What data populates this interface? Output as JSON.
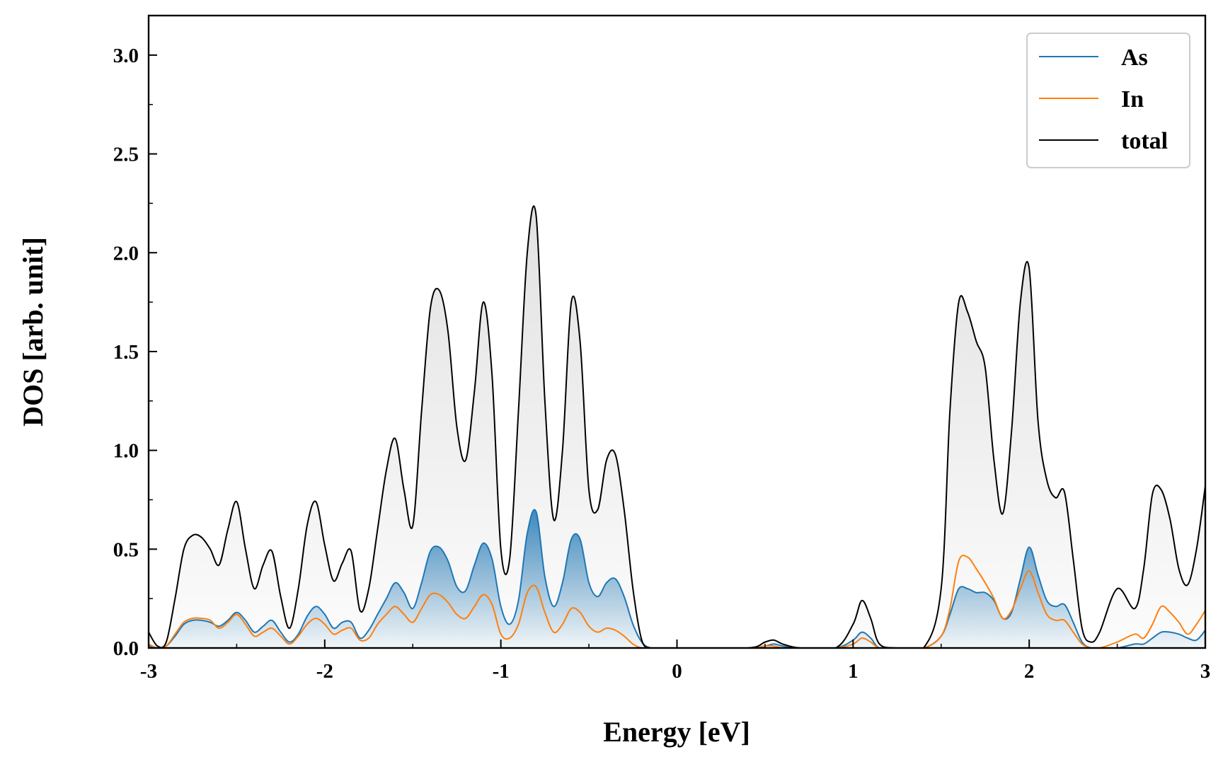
{
  "chart_data": {
    "type": "line",
    "title": "",
    "xlabel": "Energy [eV]",
    "ylabel": "DOS [arb. unit]",
    "xlim": [
      -3,
      3
    ],
    "ylim": [
      0,
      3.2
    ],
    "x_ticks": [
      -3,
      -2,
      -1,
      0,
      1,
      2,
      3
    ],
    "x_tick_labels": [
      "-3",
      "-2",
      "-1",
      "0",
      "1",
      "2",
      "3"
    ],
    "y_ticks": [
      0.0,
      0.5,
      1.0,
      1.5,
      2.0,
      2.5,
      3.0
    ],
    "y_tick_labels": [
      "0.0",
      "0.5",
      "1.0",
      "1.5",
      "2.0",
      "2.5",
      "3.0"
    ],
    "grid": false,
    "legend_position": "top-right",
    "series": [
      {
        "name": "As",
        "color": "#1f77b4",
        "x": [
          -3.0,
          -2.95,
          -2.9,
          -2.85,
          -2.8,
          -2.75,
          -2.7,
          -2.65,
          -2.6,
          -2.55,
          -2.5,
          -2.45,
          -2.4,
          -2.35,
          -2.3,
          -2.25,
          -2.2,
          -2.15,
          -2.1,
          -2.05,
          -2.0,
          -1.95,
          -1.9,
          -1.85,
          -1.8,
          -1.75,
          -1.7,
          -1.65,
          -1.6,
          -1.55,
          -1.5,
          -1.45,
          -1.4,
          -1.35,
          -1.3,
          -1.25,
          -1.2,
          -1.15,
          -1.1,
          -1.05,
          -1.0,
          -0.95,
          -0.9,
          -0.85,
          -0.8,
          -0.75,
          -0.7,
          -0.65,
          -0.6,
          -0.55,
          -0.5,
          -0.45,
          -0.4,
          -0.35,
          -0.3,
          -0.25,
          -0.2,
          -0.15,
          -0.1,
          0.0,
          0.4,
          0.5,
          0.55,
          0.6,
          0.7,
          0.9,
          1.0,
          1.05,
          1.1,
          1.15,
          1.25,
          1.4,
          1.5,
          1.55,
          1.6,
          1.65,
          1.7,
          1.75,
          1.8,
          1.85,
          1.9,
          1.95,
          2.0,
          2.05,
          2.1,
          2.15,
          2.2,
          2.25,
          2.3,
          2.35,
          2.4,
          2.5,
          2.6,
          2.65,
          2.7,
          2.75,
          2.8,
          2.85,
          2.9,
          2.95,
          3.0
        ],
        "y": [
          0.01,
          0.0,
          0.01,
          0.06,
          0.12,
          0.14,
          0.14,
          0.13,
          0.11,
          0.14,
          0.18,
          0.14,
          0.08,
          0.11,
          0.14,
          0.08,
          0.03,
          0.07,
          0.16,
          0.21,
          0.17,
          0.1,
          0.13,
          0.13,
          0.05,
          0.09,
          0.17,
          0.25,
          0.33,
          0.28,
          0.2,
          0.33,
          0.49,
          0.51,
          0.44,
          0.31,
          0.29,
          0.42,
          0.53,
          0.45,
          0.21,
          0.12,
          0.24,
          0.58,
          0.69,
          0.36,
          0.21,
          0.33,
          0.55,
          0.55,
          0.33,
          0.26,
          0.33,
          0.35,
          0.26,
          0.12,
          0.03,
          0.0,
          0.0,
          0.0,
          0.0,
          0.01,
          0.02,
          0.01,
          0.0,
          0.0,
          0.04,
          0.08,
          0.05,
          0.0,
          0.0,
          0.0,
          0.06,
          0.17,
          0.3,
          0.3,
          0.28,
          0.28,
          0.24,
          0.15,
          0.18,
          0.35,
          0.51,
          0.37,
          0.24,
          0.21,
          0.22,
          0.13,
          0.03,
          0.0,
          0.0,
          0.0,
          0.02,
          0.02,
          0.05,
          0.08,
          0.08,
          0.07,
          0.05,
          0.04,
          0.09
        ]
      },
      {
        "name": "In",
        "color": "#ff7f0e",
        "x": [
          -3.0,
          -2.95,
          -2.9,
          -2.85,
          -2.8,
          -2.75,
          -2.7,
          -2.65,
          -2.6,
          -2.55,
          -2.5,
          -2.45,
          -2.4,
          -2.35,
          -2.3,
          -2.25,
          -2.2,
          -2.15,
          -2.1,
          -2.05,
          -2.0,
          -1.95,
          -1.9,
          -1.85,
          -1.8,
          -1.75,
          -1.7,
          -1.65,
          -1.6,
          -1.55,
          -1.5,
          -1.45,
          -1.4,
          -1.35,
          -1.3,
          -1.25,
          -1.2,
          -1.15,
          -1.1,
          -1.05,
          -1.0,
          -0.95,
          -0.9,
          -0.85,
          -0.8,
          -0.75,
          -0.7,
          -0.65,
          -0.6,
          -0.55,
          -0.5,
          -0.45,
          -0.4,
          -0.35,
          -0.3,
          -0.25,
          -0.2,
          -0.15,
          -0.1,
          0.0,
          0.4,
          0.5,
          0.55,
          0.6,
          0.7,
          0.9,
          1.0,
          1.05,
          1.1,
          1.15,
          1.25,
          1.4,
          1.5,
          1.55,
          1.6,
          1.65,
          1.7,
          1.75,
          1.8,
          1.85,
          1.9,
          1.95,
          2.0,
          2.05,
          2.1,
          2.15,
          2.2,
          2.25,
          2.3,
          2.35,
          2.4,
          2.5,
          2.6,
          2.65,
          2.7,
          2.75,
          2.8,
          2.85,
          2.9,
          2.95,
          3.0
        ],
        "y": [
          0.02,
          0.0,
          0.01,
          0.07,
          0.13,
          0.15,
          0.15,
          0.14,
          0.1,
          0.13,
          0.17,
          0.12,
          0.06,
          0.08,
          0.1,
          0.06,
          0.02,
          0.06,
          0.12,
          0.15,
          0.12,
          0.07,
          0.09,
          0.1,
          0.04,
          0.05,
          0.12,
          0.17,
          0.21,
          0.17,
          0.13,
          0.2,
          0.27,
          0.27,
          0.23,
          0.17,
          0.15,
          0.21,
          0.27,
          0.22,
          0.07,
          0.05,
          0.12,
          0.28,
          0.31,
          0.18,
          0.08,
          0.12,
          0.2,
          0.18,
          0.11,
          0.08,
          0.1,
          0.09,
          0.06,
          0.02,
          0.0,
          0.0,
          0.0,
          0.0,
          0.0,
          0.01,
          0.01,
          0.0,
          0.0,
          0.0,
          0.02,
          0.05,
          0.03,
          0.0,
          0.0,
          0.0,
          0.06,
          0.2,
          0.44,
          0.46,
          0.4,
          0.33,
          0.25,
          0.15,
          0.19,
          0.3,
          0.39,
          0.28,
          0.17,
          0.14,
          0.14,
          0.08,
          0.02,
          0.0,
          0.0,
          0.03,
          0.07,
          0.05,
          0.12,
          0.21,
          0.18,
          0.13,
          0.07,
          0.12,
          0.19
        ]
      },
      {
        "name": "total",
        "color": "#000000",
        "x": [
          -3.0,
          -2.95,
          -2.9,
          -2.85,
          -2.8,
          -2.75,
          -2.7,
          -2.65,
          -2.6,
          -2.55,
          -2.5,
          -2.45,
          -2.4,
          -2.35,
          -2.3,
          -2.25,
          -2.2,
          -2.15,
          -2.1,
          -2.05,
          -2.0,
          -1.95,
          -1.9,
          -1.85,
          -1.8,
          -1.75,
          -1.7,
          -1.65,
          -1.6,
          -1.55,
          -1.5,
          -1.45,
          -1.4,
          -1.35,
          -1.3,
          -1.25,
          -1.2,
          -1.15,
          -1.1,
          -1.05,
          -1.0,
          -0.95,
          -0.9,
          -0.85,
          -0.8,
          -0.75,
          -0.7,
          -0.65,
          -0.6,
          -0.55,
          -0.5,
          -0.45,
          -0.4,
          -0.35,
          -0.3,
          -0.25,
          -0.2,
          -0.15,
          -0.1,
          0.0,
          0.4,
          0.5,
          0.55,
          0.6,
          0.7,
          0.9,
          1.0,
          1.05,
          1.1,
          1.15,
          1.25,
          1.4,
          1.5,
          1.55,
          1.6,
          1.65,
          1.7,
          1.75,
          1.8,
          1.85,
          1.9,
          1.95,
          2.0,
          2.05,
          2.1,
          2.15,
          2.2,
          2.25,
          2.3,
          2.35,
          2.4,
          2.5,
          2.6,
          2.65,
          2.7,
          2.75,
          2.8,
          2.85,
          2.9,
          2.95,
          3.0
        ],
        "y": [
          0.08,
          0.01,
          0.03,
          0.25,
          0.5,
          0.57,
          0.56,
          0.5,
          0.42,
          0.6,
          0.74,
          0.5,
          0.3,
          0.42,
          0.49,
          0.26,
          0.1,
          0.3,
          0.62,
          0.74,
          0.52,
          0.34,
          0.43,
          0.49,
          0.19,
          0.3,
          0.6,
          0.9,
          1.06,
          0.8,
          0.62,
          1.2,
          1.72,
          1.81,
          1.6,
          1.12,
          0.95,
          1.3,
          1.75,
          1.38,
          0.5,
          0.45,
          1.2,
          2.0,
          2.19,
          1.25,
          0.65,
          1.0,
          1.75,
          1.55,
          0.8,
          0.7,
          0.95,
          0.98,
          0.7,
          0.3,
          0.04,
          0.0,
          0.0,
          0.0,
          0.0,
          0.03,
          0.04,
          0.02,
          0.0,
          0.0,
          0.12,
          0.24,
          0.15,
          0.02,
          0.0,
          0.0,
          0.3,
          1.2,
          1.75,
          1.7,
          1.55,
          1.42,
          0.95,
          0.68,
          1.1,
          1.75,
          1.92,
          1.15,
          0.85,
          0.76,
          0.79,
          0.45,
          0.1,
          0.03,
          0.08,
          0.3,
          0.2,
          0.4,
          0.78,
          0.8,
          0.65,
          0.4,
          0.32,
          0.5,
          0.82
        ]
      }
    ]
  }
}
